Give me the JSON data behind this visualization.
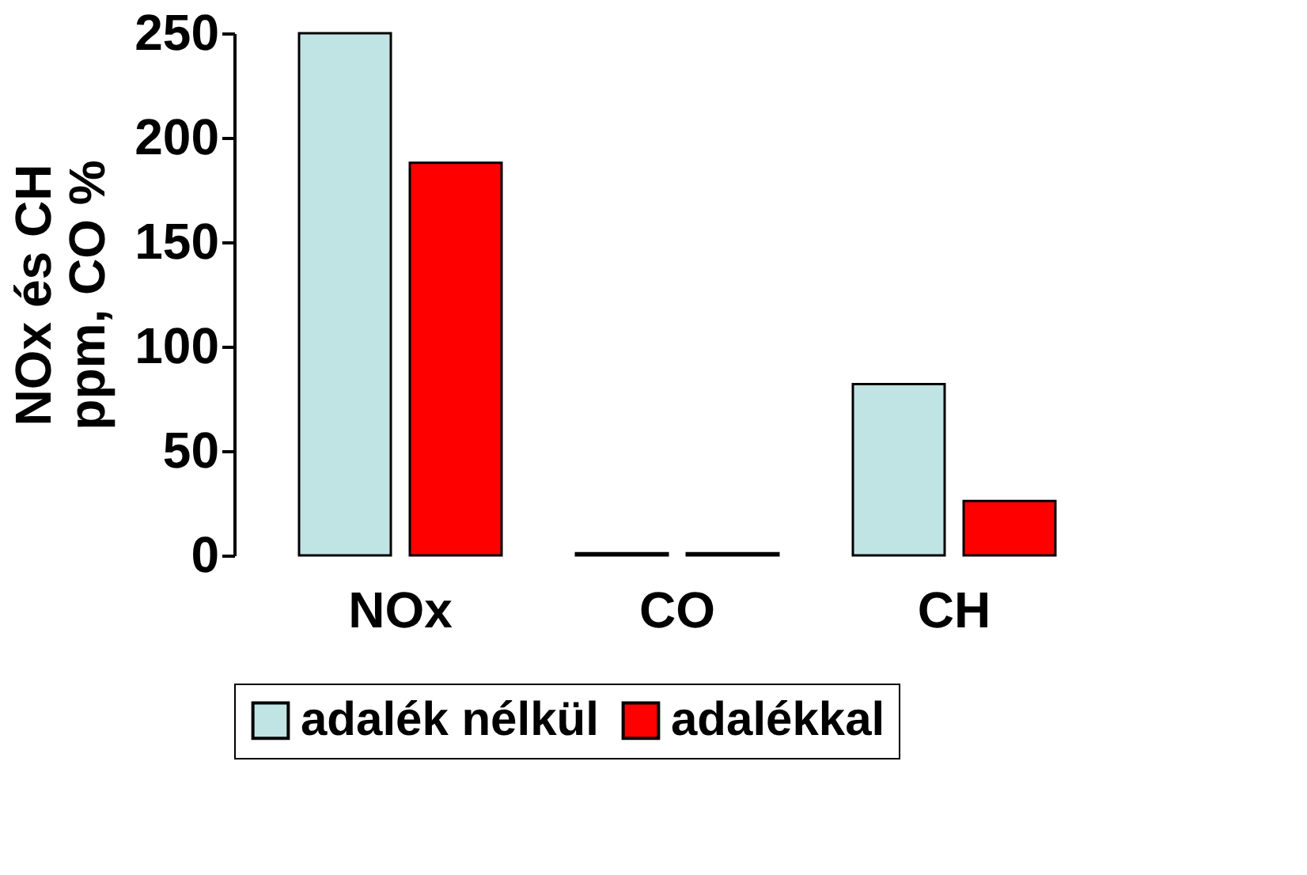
{
  "chart_data": {
    "type": "bar",
    "ylabel": "NOx és CH\nppm, CO  %",
    "categories": [
      "NOx",
      "CO",
      "CH"
    ],
    "series": [
      {
        "name": "adalék nélkül",
        "color": "#c0e4e4",
        "values": [
          250,
          1,
          82
        ]
      },
      {
        "name": "adalékkal",
        "color": "#ff0000",
        "values": [
          188,
          1,
          26
        ]
      }
    ],
    "ylim": [
      0,
      250
    ],
    "yticks": [
      0,
      50,
      100,
      150,
      200,
      250
    ],
    "grid": false,
    "legend": "bottom"
  }
}
